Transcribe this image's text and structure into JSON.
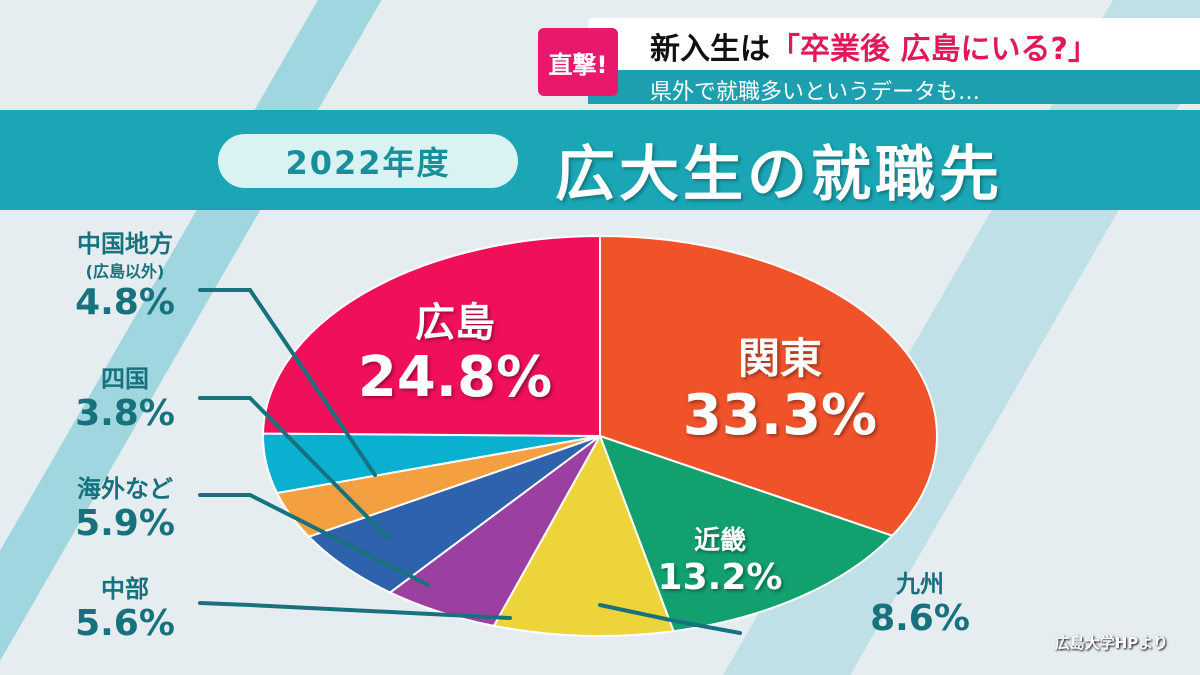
{
  "ticker": {
    "badge": "直撃!",
    "headline_prefix": "新入生は",
    "headline_highlight": "「卒業後 広島にいる?」",
    "subline": "県外で就職多いというデータも…"
  },
  "header": {
    "year": "2022年度",
    "title": "広大生の就職先"
  },
  "source": "広島大学HPより",
  "chart_data": {
    "type": "pie",
    "title": "広大生の就職先",
    "subtitle": "2022年度",
    "start": "top",
    "direction": "clockwise",
    "slices": [
      {
        "label": "関東",
        "value": 33.3,
        "display": "33.3%",
        "color": "#f0522a"
      },
      {
        "label": "近畿",
        "value": 13.2,
        "display": "13.2%",
        "color": "#12a06e"
      },
      {
        "label": "九州",
        "value": 8.6,
        "display": "8.6%",
        "color": "#ecd43a"
      },
      {
        "label": "中部",
        "value": 5.6,
        "display": "5.6%",
        "color": "#9b3fa0"
      },
      {
        "label": "海外など",
        "value": 5.9,
        "display": "5.9%",
        "color": "#2e62ad"
      },
      {
        "label": "四国",
        "value": 3.8,
        "display": "3.8%",
        "color": "#f5a040"
      },
      {
        "label": "中国地方",
        "sublabel": "(広島以外)",
        "value": 4.8,
        "display": "4.8%",
        "color": "#0ab0d0"
      },
      {
        "label": "広島",
        "value": 24.8,
        "display": "24.8%",
        "color": "#f0105a"
      }
    ]
  }
}
